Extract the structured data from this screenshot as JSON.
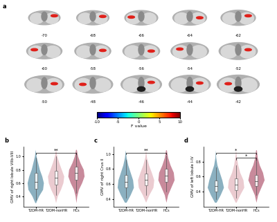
{
  "panel_a": {
    "label": "a",
    "slices": [
      -70,
      -68,
      -66,
      -64,
      -62,
      -60,
      -58,
      -56,
      -54,
      -52,
      -50,
      -48,
      -46,
      -44,
      -42
    ],
    "colorbar": {
      "label": "F value",
      "range": [
        -10,
        10
      ],
      "ticks": [
        -10,
        -5,
        0,
        5,
        10
      ]
    }
  },
  "chart_data": [
    {
      "type": "violin",
      "label": "b",
      "y_label": "GMV of right lobule VIIb-VIII",
      "categories": [
        "T2DM-HR",
        "T2DM-nonHR",
        "HCs"
      ],
      "colors": [
        "#7fa8ba",
        "#e9c6cb",
        "#c27d90"
      ],
      "ylim": [
        0.25,
        1.15
      ],
      "yticks": [
        0.4,
        0.6,
        0.8,
        1.0
      ],
      "density_y": [
        0.3,
        0.4,
        0.5,
        0.6,
        0.7,
        0.8,
        0.9,
        1.0,
        1.1
      ],
      "density": [
        [
          0.05,
          0.4,
          0.9,
          1.0,
          0.8,
          0.5,
          0.3,
          0.1,
          0.0
        ],
        [
          0.0,
          0.2,
          0.6,
          0.9,
          1.0,
          0.7,
          0.4,
          0.15,
          0.0
        ],
        [
          0.0,
          0.1,
          0.3,
          0.7,
          1.0,
          0.9,
          0.5,
          0.2,
          0.05
        ]
      ],
      "box": [
        [
          0.35,
          0.52,
          0.62,
          0.75,
          0.98
        ],
        [
          0.42,
          0.58,
          0.68,
          0.78,
          1.0
        ],
        [
          0.45,
          0.65,
          0.75,
          0.85,
          1.05
        ]
      ],
      "comparisons": [
        {
          "from": "T2DM-HR",
          "to": "HCs",
          "label": "**"
        }
      ]
    },
    {
      "type": "violin",
      "label": "c",
      "y_label": "GMV of right Crus II",
      "categories": [
        "T2DM-HR",
        "T2DM-nonHR",
        "HCs"
      ],
      "colors": [
        "#7fa8ba",
        "#e9c6cb",
        "#c27d90"
      ],
      "ylim": [
        0.3,
        1.1
      ],
      "yticks": [
        0.4,
        0.6,
        0.8,
        1.0
      ],
      "density_y": [
        0.35,
        0.45,
        0.55,
        0.65,
        0.75,
        0.85,
        0.95,
        1.05
      ],
      "density": [
        [
          0.1,
          0.6,
          1.0,
          0.9,
          0.6,
          0.3,
          0.1,
          0.0
        ],
        [
          0.0,
          0.4,
          0.9,
          1.0,
          0.7,
          0.35,
          0.1,
          0.0
        ],
        [
          0.0,
          0.2,
          0.6,
          1.0,
          0.9,
          0.5,
          0.2,
          0.05
        ]
      ],
      "box": [
        [
          0.42,
          0.55,
          0.63,
          0.72,
          0.92
        ],
        [
          0.45,
          0.58,
          0.66,
          0.74,
          0.92
        ],
        [
          0.5,
          0.63,
          0.71,
          0.8,
          0.98
        ]
      ],
      "comparisons": [
        {
          "from": "T2DM-HR",
          "to": "HCs",
          "label": "**"
        }
      ]
    },
    {
      "type": "violin",
      "label": "d",
      "y_label": "GMV of left lobule I-IV",
      "categories": [
        "T2DM-HR",
        "T2DM-nonHR",
        "HCs"
      ],
      "colors": [
        "#7fa8ba",
        "#e9c6cb",
        "#c27d90"
      ],
      "ylim": [
        0.2,
        1.0
      ],
      "yticks": [
        0.4,
        0.6,
        0.8
      ],
      "density_y": [
        0.25,
        0.35,
        0.45,
        0.55,
        0.65,
        0.75,
        0.85,
        0.95
      ],
      "density": [
        [
          0.1,
          0.6,
          1.0,
          0.8,
          0.5,
          0.2,
          0.05,
          0.0
        ],
        [
          0.05,
          0.5,
          1.0,
          0.9,
          0.5,
          0.25,
          0.1,
          0.0
        ],
        [
          0.0,
          0.2,
          0.6,
          1.0,
          0.8,
          0.4,
          0.15,
          0.05
        ]
      ],
      "box": [
        [
          0.3,
          0.4,
          0.47,
          0.55,
          0.72
        ],
        [
          0.32,
          0.42,
          0.49,
          0.57,
          0.75
        ],
        [
          0.35,
          0.47,
          0.54,
          0.62,
          0.82
        ]
      ],
      "comparisons": [
        {
          "from": "T2DM-HR",
          "to": "HCs",
          "label": "*"
        },
        {
          "from": "T2DM-nonHR",
          "to": "HCs",
          "label": "*"
        }
      ]
    }
  ]
}
